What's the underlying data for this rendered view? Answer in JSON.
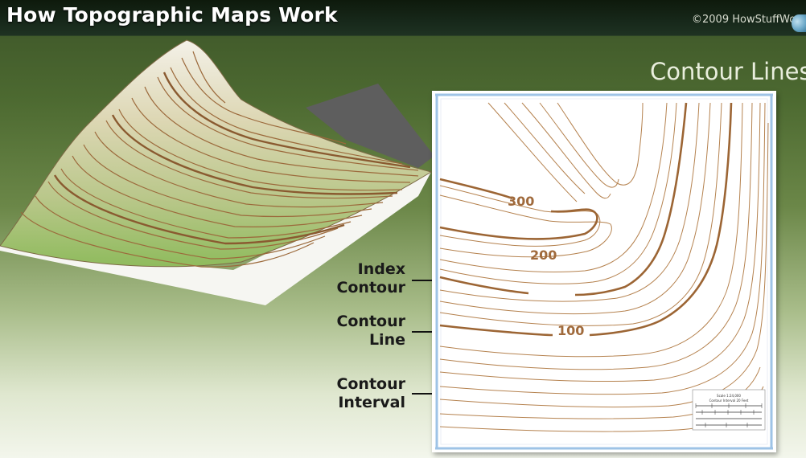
{
  "header": {
    "title": "How Topographic Maps Work",
    "copyright": "©2009 HowStuffWo"
  },
  "section_heading": "Contour Lines",
  "map": {
    "contour_labels": [
      "300",
      "200",
      "100"
    ],
    "scale_bar": {
      "title": "Scale 1:24,000",
      "subtitle": "Contour Interval 20 Feet"
    }
  },
  "legend": {
    "index_contour": [
      "Index",
      "Contour"
    ],
    "contour_line": [
      "Contour",
      "Line"
    ],
    "contour_interval": [
      "Contour",
      "Interval"
    ]
  },
  "colors": {
    "contour_line": "#b07a4a",
    "index_contour": "#9c6534",
    "map_border": "#9ec3e6",
    "header_bg": "#17281a"
  },
  "icons": [
    "globe-logo-icon"
  ]
}
